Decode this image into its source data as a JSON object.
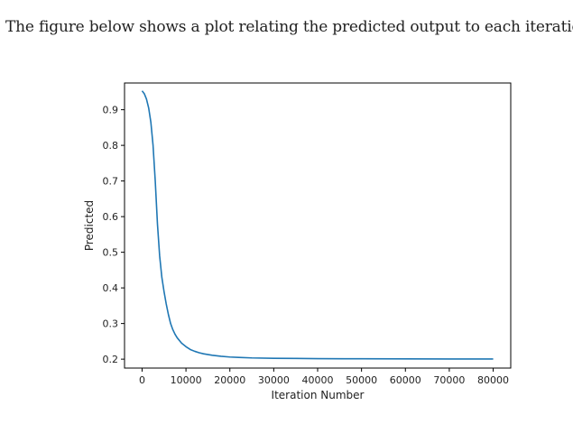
{
  "intro_text": "The figure below shows a plot relating the predicted output to each iteration.",
  "colors": {
    "line": "#1f77b4",
    "axes": "#000000",
    "text": "#222222"
  },
  "chart_data": {
    "type": "line",
    "xlabel": "Iteration Number",
    "ylabel": "Predicted",
    "xlim": [
      -4000,
      84000
    ],
    "ylim": [
      0.175,
      0.975
    ],
    "xticks": [
      0,
      10000,
      20000,
      30000,
      40000,
      50000,
      60000,
      70000,
      80000
    ],
    "xtick_labels": [
      "0",
      "10000",
      "20000",
      "30000",
      "40000",
      "50000",
      "60000",
      "70000",
      "80000"
    ],
    "yticks": [
      0.2,
      0.3,
      0.4,
      0.5,
      0.6,
      0.7,
      0.8,
      0.9
    ],
    "ytick_labels": [
      "0.2",
      "0.3",
      "0.4",
      "0.5",
      "0.6",
      "0.7",
      "0.8",
      "0.9"
    ],
    "grid": false,
    "series": [
      {
        "x": [
          0,
          500,
          1000,
          1500,
          2000,
          2500,
          3000,
          3500,
          4000,
          4500,
          5000,
          5500,
          6000,
          6500,
          7000,
          7500,
          8000,
          9000,
          10000,
          11000,
          12000,
          13000,
          14000,
          16000,
          18000,
          20000,
          22000,
          25000,
          30000,
          35000,
          40000,
          50000,
          60000,
          70000,
          80000
        ],
        "y": [
          0.953,
          0.945,
          0.93,
          0.905,
          0.865,
          0.8,
          0.7,
          0.58,
          0.49,
          0.43,
          0.39,
          0.355,
          0.325,
          0.3,
          0.283,
          0.27,
          0.26,
          0.245,
          0.235,
          0.227,
          0.222,
          0.218,
          0.215,
          0.211,
          0.208,
          0.206,
          0.205,
          0.2035,
          0.2025,
          0.202,
          0.2015,
          0.201,
          0.2008,
          0.2006,
          0.2005
        ]
      }
    ]
  }
}
